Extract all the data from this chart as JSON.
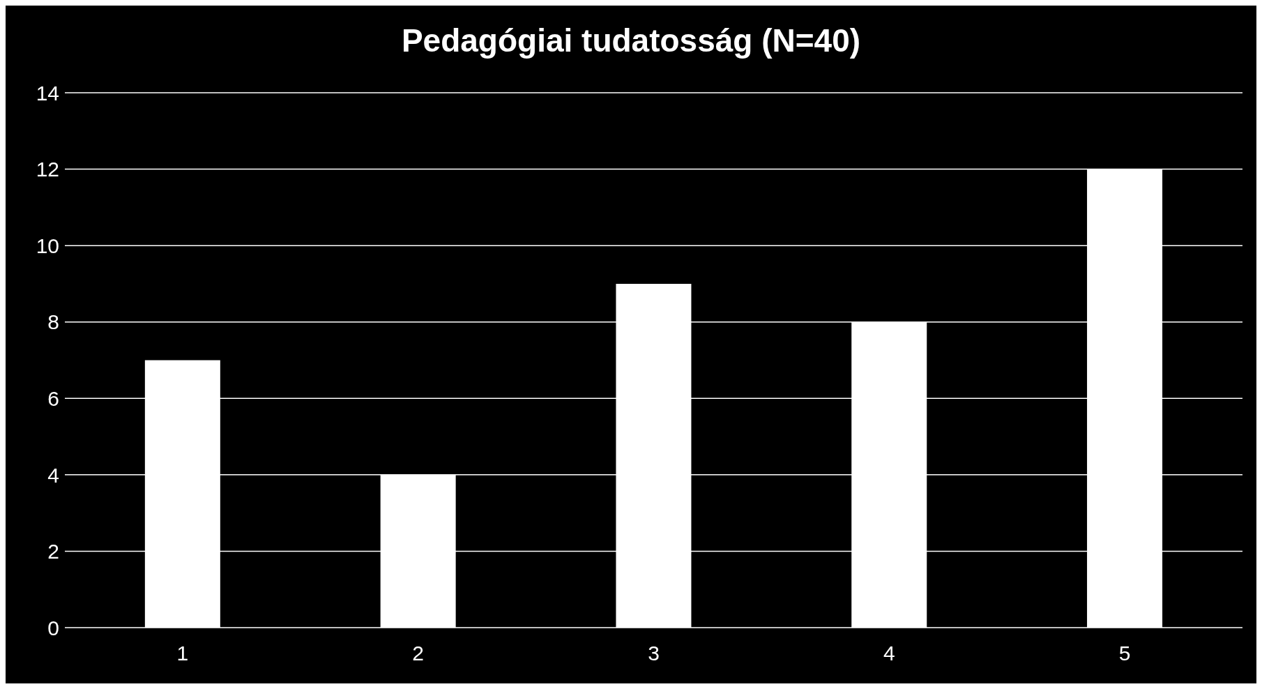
{
  "chart_data": {
    "type": "bar",
    "title": "Pedagógiai tudatosság (N=40)",
    "categories": [
      "1",
      "2",
      "3",
      "4",
      "5"
    ],
    "values": [
      7,
      4,
      9,
      8,
      12
    ],
    "color": "#ffffff",
    "ylim": [
      0,
      14
    ],
    "yticks": [
      0,
      2,
      4,
      6,
      8,
      10,
      12,
      14
    ],
    "grid": "y"
  }
}
